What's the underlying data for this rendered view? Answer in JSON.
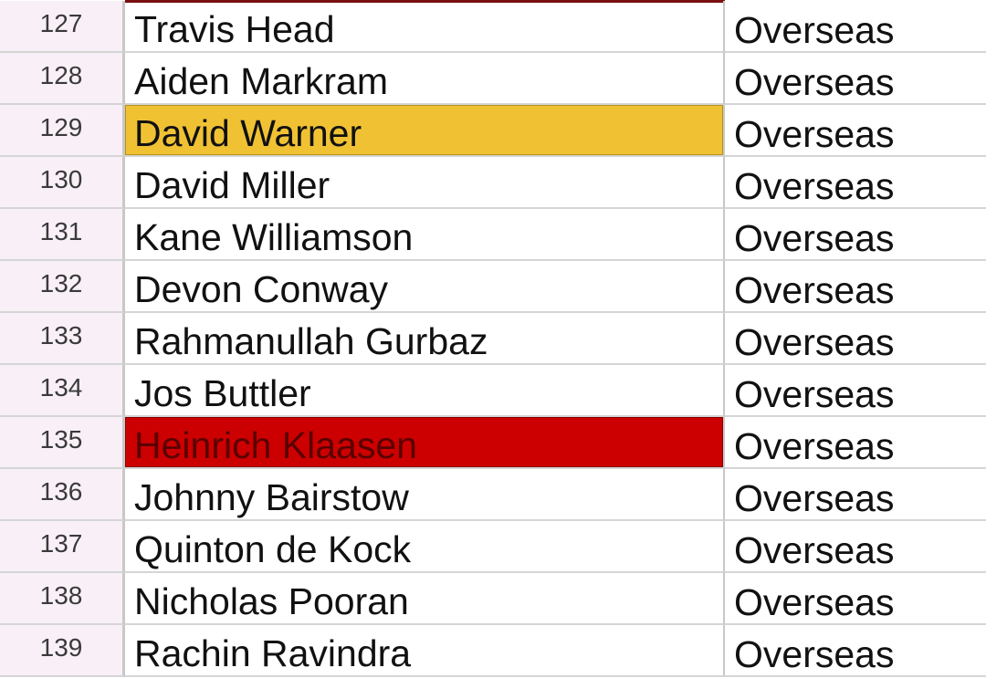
{
  "sheet": {
    "accent_color": "#7a1010",
    "rows": [
      {
        "num": "127",
        "name": "Travis Head",
        "type": "Overseas",
        "highlight": null
      },
      {
        "num": "128",
        "name": "Aiden Markram",
        "type": "Overseas",
        "highlight": null
      },
      {
        "num": "129",
        "name": "David Warner",
        "type": "Overseas",
        "highlight": "#f0c233"
      },
      {
        "num": "130",
        "name": "David Miller",
        "type": "Overseas",
        "highlight": null
      },
      {
        "num": "131",
        "name": "Kane Williamson",
        "type": "Overseas",
        "highlight": null
      },
      {
        "num": "132",
        "name": "Devon Conway",
        "type": "Overseas",
        "highlight": null
      },
      {
        "num": "133",
        "name": "Rahmanullah Gurbaz",
        "type": "Overseas",
        "highlight": null
      },
      {
        "num": "134",
        "name": "Jos Buttler",
        "type": "Overseas",
        "highlight": null
      },
      {
        "num": "135",
        "name": "Heinrich Klaasen",
        "type": "Overseas",
        "highlight": "#cc0000"
      },
      {
        "num": "136",
        "name": "Johnny Bairstow",
        "type": "Overseas",
        "highlight": null
      },
      {
        "num": "137",
        "name": "Quinton de Kock",
        "type": "Overseas",
        "highlight": null
      },
      {
        "num": "138",
        "name": "Nicholas Pooran",
        "type": "Overseas",
        "highlight": null
      },
      {
        "num": "139",
        "name": "Rachin Ravindra",
        "type": "Overseas",
        "highlight": null
      }
    ]
  }
}
